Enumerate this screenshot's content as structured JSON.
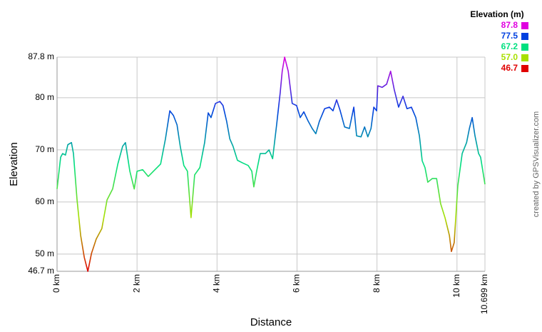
{
  "chart_data": {
    "type": "line",
    "x_label": "Distance",
    "y_label": "Elevation",
    "credit": "created by GPSVisualizer.com",
    "legend_title": "Elevation (m)",
    "color_scale": [
      {
        "value": 87.8,
        "color": "#e000e0"
      },
      {
        "value": 77.5,
        "color": "#0040e0"
      },
      {
        "value": 67.2,
        "color": "#00e080"
      },
      {
        "value": {
          "value": 57,
          "label": "57.0"
        },
        "color": "#a8e000"
      },
      {
        "value": 46.7,
        "color": "#e00000"
      }
    ],
    "xlim": [
      0,
      10.699
    ],
    "ylim": [
      46.7,
      87.8
    ],
    "xticks": [
      {
        "value": 0,
        "label": "0 km"
      },
      {
        "value": 2,
        "label": "2 km"
      },
      {
        "value": 4,
        "label": "4 km"
      },
      {
        "value": 6,
        "label": "6 km"
      },
      {
        "value": 8,
        "label": "8 km"
      },
      {
        "value": 10,
        "label": "10 km"
      },
      {
        "value": 10.699,
        "label": "10.699 km"
      }
    ],
    "yticks": [
      {
        "value": 46.7,
        "label": "46.7 m"
      },
      {
        "value": 50,
        "label": "50 m"
      },
      {
        "value": 60,
        "label": "60 m"
      },
      {
        "value": 70,
        "label": "70 m"
      },
      {
        "value": 80,
        "label": "80 m"
      },
      {
        "value": 87.8,
        "label": "87.8 m"
      }
    ],
    "grid": true,
    "x": [
      0,
      0.09,
      0.14,
      0.21,
      0.27,
      0.36,
      0.41,
      0.5,
      0.59,
      0.68,
      0.77,
      0.86,
      0.98,
      1.12,
      1.25,
      1.39,
      1.52,
      1.64,
      1.71,
      1.82,
      1.93,
      2.0,
      2.14,
      2.28,
      2.41,
      2.59,
      2.71,
      2.82,
      2.91,
      3.0,
      3.08,
      3.17,
      3.26,
      3.35,
      3.44,
      3.57,
      3.69,
      3.78,
      3.85,
      3.96,
      4.07,
      4.15,
      4.24,
      4.32,
      4.4,
      4.51,
      4.64,
      4.78,
      4.87,
      4.92,
      4.99,
      5.08,
      5.21,
      5.3,
      5.39,
      5.49,
      5.58,
      5.63,
      5.69,
      5.78,
      5.88,
      5.99,
      6.08,
      6.17,
      6.28,
      6.38,
      6.47,
      6.56,
      6.69,
      6.81,
      6.9,
      6.99,
      7.08,
      7.19,
      7.31,
      7.42,
      7.49,
      7.6,
      7.69,
      7.77,
      7.85,
      7.92,
      7.99,
      8.02,
      8.13,
      8.24,
      8.34,
      8.43,
      8.54,
      8.65,
      8.75,
      8.86,
      8.97,
      9.06,
      9.13,
      9.2,
      9.27,
      9.38,
      9.49,
      9.59,
      9.7,
      9.81,
      9.86,
      9.93,
      10.02,
      10.13,
      10.24,
      10.31,
      10.38,
      10.45,
      10.54,
      10.59,
      10.699
    ],
    "values": [
      62.5,
      68.6,
      69.3,
      69.0,
      71.0,
      71.4,
      69.3,
      60.4,
      53.6,
      49.4,
      46.7,
      50.1,
      52.9,
      54.9,
      60.4,
      62.5,
      67.3,
      70.7,
      71.4,
      65.9,
      62.5,
      65.9,
      66.2,
      64.9,
      65.9,
      67.3,
      72.1,
      77.5,
      76.6,
      74.8,
      70.7,
      67.0,
      65.9,
      57.0,
      65.2,
      66.6,
      71.4,
      77.1,
      76.2,
      78.9,
      79.3,
      78.5,
      75.5,
      72.1,
      70.7,
      68.0,
      67.5,
      67.0,
      65.9,
      62.9,
      65.9,
      69.3,
      69.3,
      70.0,
      68.3,
      74.8,
      81.0,
      85.1,
      87.8,
      85.1,
      78.9,
      78.5,
      76.2,
      77.3,
      75.5,
      74.1,
      73.1,
      75.5,
      77.9,
      78.2,
      77.5,
      79.6,
      77.5,
      74.4,
      74.1,
      78.2,
      72.7,
      72.5,
      74.4,
      72.5,
      74.1,
      78.2,
      77.5,
      82.3,
      82.0,
      82.6,
      85.1,
      81.6,
      78.2,
      80.3,
      77.9,
      78.2,
      76.2,
      72.7,
      67.9,
      66.6,
      63.8,
      64.5,
      64.5,
      59.7,
      57.0,
      53.6,
      50.5,
      52.2,
      63.1,
      69.3,
      71.4,
      74.1,
      76.2,
      72.7,
      69.3,
      68.6,
      63.4
    ]
  }
}
